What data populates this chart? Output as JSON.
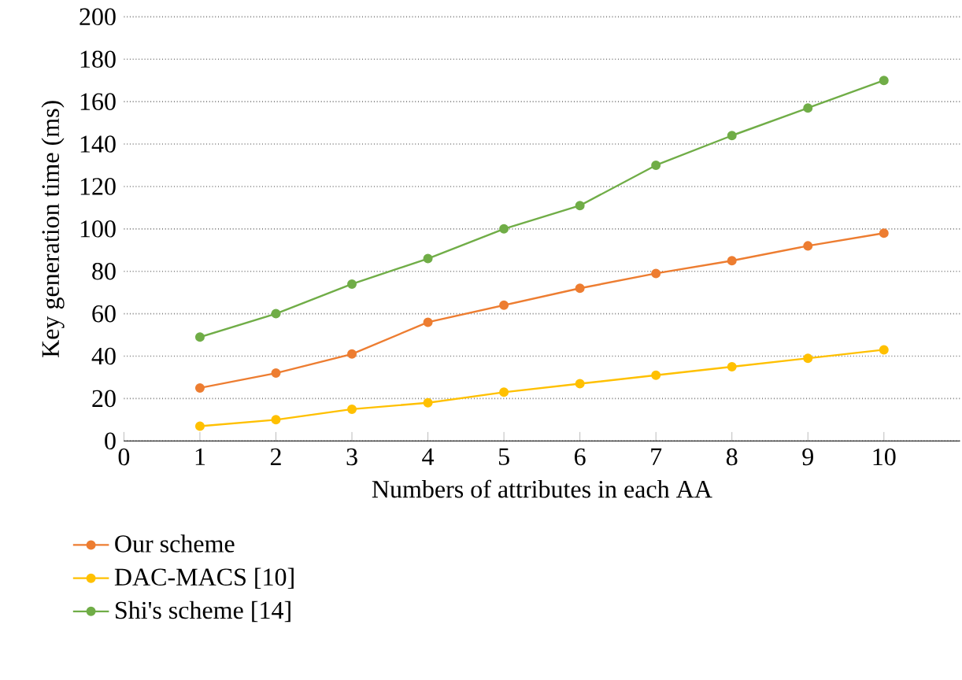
{
  "chart_data": {
    "type": "line",
    "xlabel": "Numbers of attributes in each AA",
    "ylabel": "Key generation time (ms)",
    "x": [
      1,
      2,
      3,
      4,
      5,
      6,
      7,
      8,
      9,
      10
    ],
    "series": [
      {
        "name": "Our scheme",
        "color": "#ed7d31",
        "values": [
          25,
          32,
          41,
          56,
          64,
          72,
          79,
          85,
          92,
          98
        ]
      },
      {
        "name": "DAC-MACS [10]",
        "color": "#ffc000",
        "values": [
          7,
          10,
          15,
          18,
          23,
          27,
          31,
          35,
          39,
          43
        ]
      },
      {
        "name": "Shi's scheme [14]",
        "color": "#70ad47",
        "values": [
          49,
          60,
          74,
          86,
          100,
          111,
          130,
          144,
          157,
          170
        ]
      }
    ],
    "xlim": [
      0,
      11
    ],
    "xticks": [
      0,
      1,
      2,
      3,
      4,
      5,
      6,
      7,
      8,
      9,
      10
    ],
    "ylim": [
      0,
      200
    ],
    "yticks": [
      0,
      20,
      40,
      60,
      80,
      100,
      120,
      140,
      160,
      180,
      200
    ],
    "grid": "y",
    "legend": "bottom",
    "marker": "circle",
    "line_style": "solid"
  }
}
